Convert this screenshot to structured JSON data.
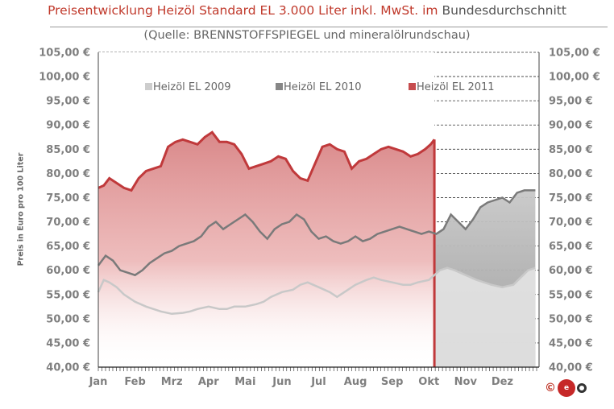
{
  "header": {
    "title_part1": "Preisentwicklung Heizöl Standard EL 3.000 Liter inkl. MwSt. im",
    "title_part2": " Bundesdurchschnitt",
    "subtitle": "(Quelle: BRENNSTOFFSPIEGEL  und mineralölrundschau)"
  },
  "logo": {
    "copyright": "©"
  },
  "colors": {
    "s2009": "#c8c8c8",
    "s2010": "#7a7a7a",
    "s2011": "#c0393b",
    "grid": "#333333",
    "axis_text": "#7f7f7f"
  },
  "chart_data": {
    "type": "area",
    "ylabel": "Preis in Euro pro 100 Liter",
    "ylim": [
      40,
      105
    ],
    "y_ticks": [
      "40,00 €",
      "45,00 €",
      "50,00 €",
      "55,00 €",
      "60,00 €",
      "65,00 €",
      "70,00 €",
      "75,00 €",
      "80,00 €",
      "85,00 €",
      "90,00 €",
      "95,00 €",
      "100,00 €",
      "105,00 €"
    ],
    "y_tick_values": [
      40,
      45,
      50,
      55,
      60,
      65,
      70,
      75,
      80,
      85,
      90,
      95,
      100,
      105
    ],
    "months": [
      "Jan",
      "Feb",
      "Mrz",
      "Apr",
      "Mai",
      "Jun",
      "Jul",
      "Aug",
      "Sep",
      "Okt",
      "Nov",
      "Dez"
    ],
    "x_unit": "month (0 = start of Jan, 12 = end of Dez)",
    "grid": "horizontal dashed",
    "legend_position": "top",
    "series": [
      {
        "name": "Heizöl EL 2009",
        "x": [
          0.0,
          0.15,
          0.3,
          0.5,
          0.7,
          1.0,
          1.3,
          1.5,
          1.7,
          2.0,
          2.3,
          2.5,
          2.7,
          3.0,
          3.3,
          3.5,
          3.7,
          4.0,
          4.3,
          4.5,
          4.7,
          5.0,
          5.3,
          5.5,
          5.7,
          6.0,
          6.3,
          6.5,
          6.7,
          7.0,
          7.3,
          7.5,
          7.7,
          8.0,
          8.3,
          8.5,
          8.7,
          9.0,
          9.3,
          9.5,
          9.7,
          10.0,
          10.3,
          10.5,
          10.7,
          11.0,
          11.3,
          11.5,
          11.7,
          11.9
        ],
        "values": [
          55.5,
          58.0,
          57.5,
          56.5,
          55.0,
          53.5,
          52.5,
          52.0,
          51.5,
          51.0,
          51.2,
          51.5,
          52.0,
          52.5,
          52.0,
          52.0,
          52.5,
          52.5,
          53.0,
          53.5,
          54.5,
          55.5,
          56.0,
          57.0,
          57.5,
          56.5,
          55.5,
          54.5,
          55.5,
          57.0,
          58.0,
          58.5,
          58.0,
          57.5,
          57.0,
          57.0,
          57.5,
          58.0,
          60.0,
          60.5,
          60.0,
          59.0,
          58.0,
          57.5,
          57.0,
          56.5,
          57.0,
          58.5,
          60.0,
          60.5
        ]
      },
      {
        "name": "Heizöl EL 2010",
        "x": [
          0.0,
          0.2,
          0.4,
          0.6,
          0.8,
          1.0,
          1.2,
          1.4,
          1.6,
          1.8,
          2.0,
          2.2,
          2.4,
          2.6,
          2.8,
          3.0,
          3.2,
          3.4,
          3.6,
          3.8,
          4.0,
          4.2,
          4.4,
          4.6,
          4.8,
          5.0,
          5.2,
          5.4,
          5.6,
          5.8,
          6.0,
          6.2,
          6.4,
          6.6,
          6.8,
          7.0,
          7.2,
          7.4,
          7.6,
          7.8,
          8.0,
          8.2,
          8.4,
          8.6,
          8.8,
          9.0,
          9.2,
          9.4,
          9.6,
          9.8,
          10.0,
          10.2,
          10.4,
          10.6,
          10.8,
          11.0,
          11.2,
          11.4,
          11.6,
          11.9
        ],
        "values": [
          61.0,
          63.0,
          62.0,
          60.0,
          59.5,
          59.0,
          60.0,
          61.5,
          62.5,
          63.5,
          64.0,
          65.0,
          65.5,
          66.0,
          67.0,
          69.0,
          70.0,
          68.5,
          69.5,
          70.5,
          71.5,
          70.0,
          68.0,
          66.5,
          68.5,
          69.5,
          70.0,
          71.5,
          70.5,
          68.0,
          66.5,
          67.0,
          66.0,
          65.5,
          66.0,
          67.0,
          66.0,
          66.5,
          67.5,
          68.0,
          68.5,
          69.0,
          68.5,
          68.0,
          67.5,
          68.0,
          67.5,
          68.5,
          71.5,
          70.0,
          68.5,
          70.5,
          73.0,
          74.0,
          74.5,
          75.0,
          74.0,
          76.0,
          76.5,
          76.5
        ]
      },
      {
        "name": "Heizöl EL 2011",
        "x": [
          0.0,
          0.2,
          0.4,
          0.6,
          0.8,
          1.0,
          1.2,
          1.4,
          1.6,
          1.8,
          2.0,
          2.2,
          2.4,
          2.6,
          2.8,
          3.0,
          3.2,
          3.4,
          3.6,
          3.8,
          4.0,
          4.2,
          4.4,
          4.6,
          4.8,
          5.0,
          5.2,
          5.4,
          5.6,
          5.8,
          6.0,
          6.2,
          6.4,
          6.6,
          6.8,
          7.0,
          7.2,
          7.4,
          7.6,
          7.8,
          8.0,
          8.2,
          8.4,
          8.6,
          8.8,
          9.0,
          9.2,
          9.4,
          9.6,
          9.8,
          10.0,
          10.2,
          10.4,
          10.6,
          10.8,
          11.0,
          11.2,
          11.4,
          11.6,
          11.9
        ],
        "values": [
          null,
          null,
          null,
          null,
          null,
          null,
          null,
          null,
          null,
          null,
          null,
          null,
          null,
          null,
          null,
          null,
          null,
          null,
          null,
          null,
          null,
          null,
          null,
          null,
          null,
          null,
          null,
          null,
          null,
          null,
          null,
          null,
          null,
          null,
          null,
          null,
          null,
          null,
          null,
          null,
          null,
          null,
          null,
          null,
          null,
          null,
          null,
          null,
          null,
          null,
          null,
          null,
          null,
          null,
          null,
          null,
          null,
          null,
          null,
          null
        ],
        "x2011": [
          0.0,
          0.15,
          0.3,
          0.5,
          0.7,
          0.9,
          1.1,
          1.3,
          1.5,
          1.7,
          1.9,
          2.1,
          2.3,
          2.5,
          2.7,
          2.9,
          3.1,
          3.3,
          3.5,
          3.7,
          3.9,
          4.1,
          4.3,
          4.5,
          4.7,
          4.9,
          5.1,
          5.3,
          5.5,
          5.7,
          5.9,
          6.1,
          6.3,
          6.5,
          6.7,
          6.9,
          7.1,
          7.3,
          7.5,
          7.7,
          7.9,
          8.1,
          8.3,
          8.5,
          8.7,
          8.9,
          9.05,
          9.15
        ],
        "values2011": [
          77.0,
          77.5,
          79.0,
          78.0,
          77.0,
          76.5,
          79.0,
          80.5,
          81.0,
          81.5,
          85.5,
          86.5,
          87.0,
          86.5,
          86.0,
          87.5,
          88.5,
          86.5,
          86.5,
          86.0,
          84.0,
          81.0,
          81.5,
          82.0,
          82.5,
          83.5,
          83.0,
          80.5,
          79.0,
          78.5,
          82.0,
          85.5,
          86.0,
          85.0,
          84.5,
          81.0,
          82.5,
          83.0,
          84.0,
          85.0,
          85.5,
          85.0,
          84.5,
          83.5,
          84.0,
          85.0,
          86.0,
          87.0
        ]
      }
    ]
  }
}
